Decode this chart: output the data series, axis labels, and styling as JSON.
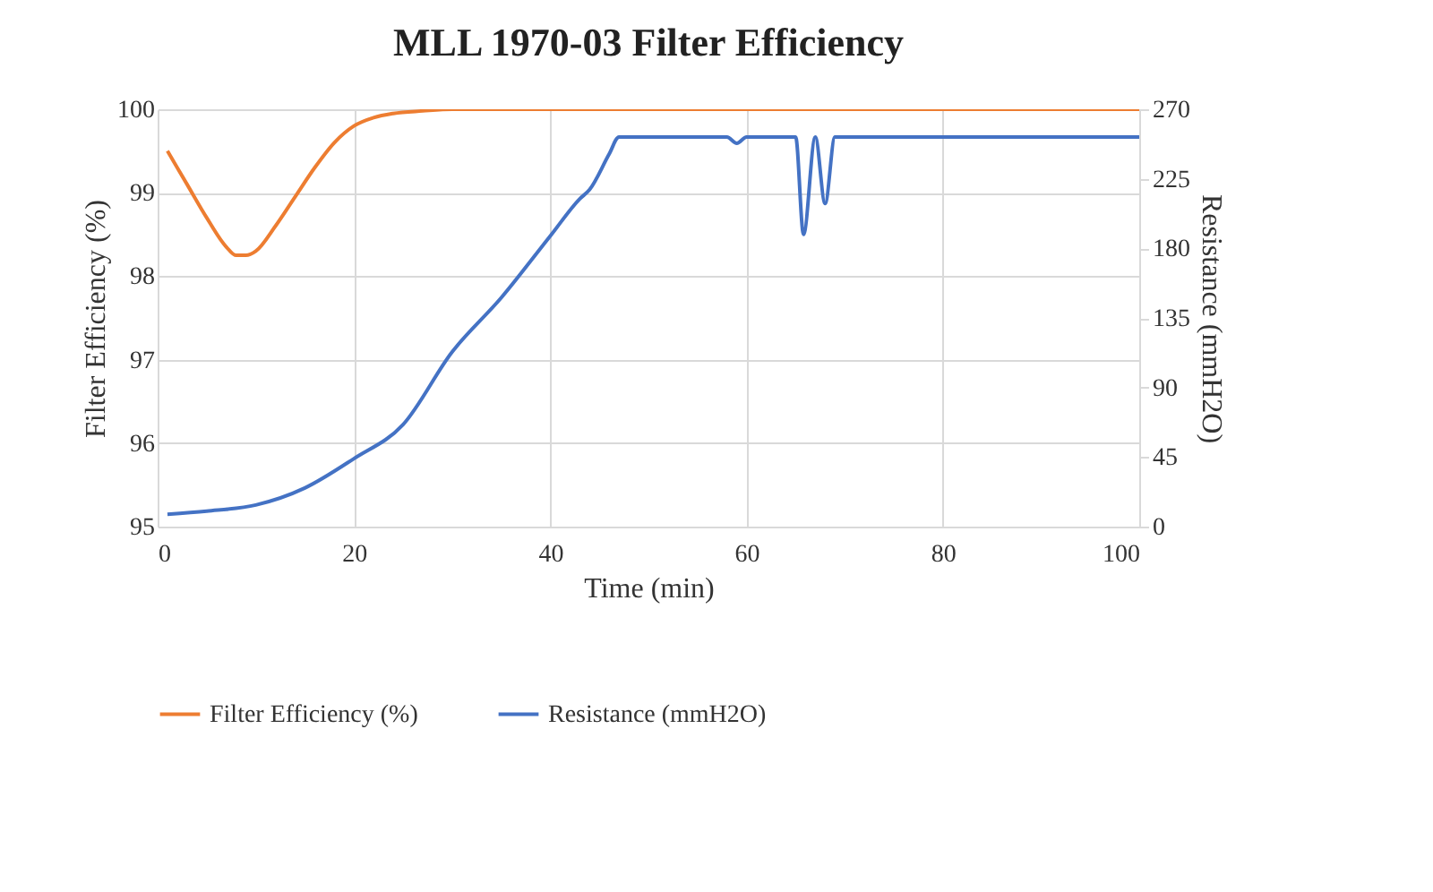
{
  "chart_data": {
    "type": "line",
    "title": "MLL 1970-03 Filter Efficiency",
    "xlabel": "Time (min)",
    "ylabel": "Filter Efficiency (%)",
    "y2label": "Resistance (mmH2O)",
    "xlim": [
      0,
      100
    ],
    "xticks": [
      0,
      20,
      40,
      60,
      80,
      100
    ],
    "ylim": [
      95,
      100
    ],
    "yticks": [
      95,
      96,
      97,
      98,
      99,
      100
    ],
    "y2lim": [
      0,
      270
    ],
    "y2ticks": [
      0,
      45,
      90,
      135,
      180,
      225,
      270
    ],
    "grid": true,
    "legend": "bottom",
    "line_style": "solid",
    "series": [
      {
        "name": "Filter Efficiency (%)",
        "color": "#ed7d31",
        "x": [
          1,
          3,
          5,
          7,
          8,
          9,
          10,
          12,
          14,
          16,
          18,
          20,
          22,
          24,
          27,
          30,
          40,
          60,
          80,
          100
        ],
        "values": [
          99.5,
          99.1,
          98.7,
          98.35,
          98.25,
          98.25,
          98.3,
          98.6,
          98.95,
          99.3,
          99.6,
          99.8,
          99.9,
          99.95,
          99.98,
          100,
          100,
          100,
          100,
          100
        ]
      },
      {
        "name": "Resistance (mmH2O)",
        "color": "#4472c4",
        "axis": "y2",
        "x": [
          1,
          5,
          10,
          15,
          20,
          25,
          30,
          35,
          40,
          43,
          44,
          46,
          47,
          50,
          58,
          59,
          60,
          65,
          65.8,
          67,
          68,
          69,
          75,
          100
        ],
        "values": [
          8,
          10,
          14,
          25,
          44,
          66,
          113,
          148,
          188,
          212,
          218,
          241,
          252,
          252,
          252,
          248,
          252,
          252,
          189,
          252,
          209,
          252,
          252,
          252
        ]
      }
    ]
  }
}
